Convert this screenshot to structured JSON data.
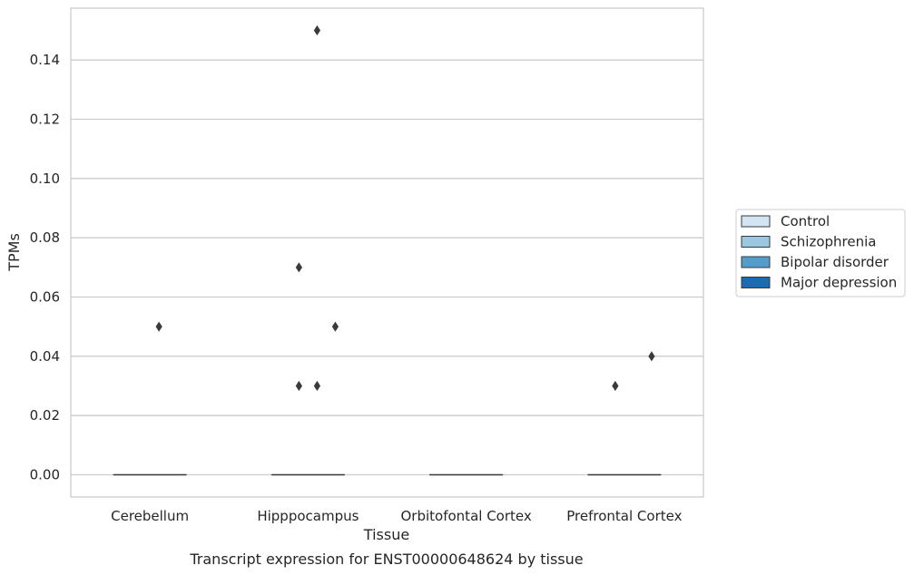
{
  "caption": "Transcript expression for ENST00000648624 by tissue",
  "chart_data": {
    "type": "box",
    "xlabel": "Tissue",
    "ylabel": "TPMs",
    "ylim": [
      -0.0075,
      0.1575
    ],
    "yticks": [
      "0.00",
      "0.02",
      "0.04",
      "0.06",
      "0.08",
      "0.10",
      "0.12",
      "0.14"
    ],
    "grid": "horizontal",
    "legend_position": "right",
    "categories": [
      "Cerebellum",
      "Hipppocampus",
      "Orbitofontal Cortex",
      "Prefrontal Cortex"
    ],
    "series": [
      {
        "name": "Control",
        "color": "#d3e4f3"
      },
      {
        "name": "Schizophrenia",
        "color": "#9ac8e0"
      },
      {
        "name": "Bipolar disorder",
        "color": "#529dcc"
      },
      {
        "name": "Major depression",
        "color": "#1c6aaf"
      }
    ],
    "boxes": [
      {
        "category": "Cerebellum",
        "series": "Control",
        "median": 0.0,
        "q1": 0.0,
        "q3": 0.0,
        "outliers": []
      },
      {
        "category": "Cerebellum",
        "series": "Schizophrenia",
        "median": 0.0,
        "q1": 0.0,
        "q3": 0.0,
        "outliers": []
      },
      {
        "category": "Cerebellum",
        "series": "Bipolar disorder",
        "median": 0.0,
        "q1": 0.0,
        "q3": 0.0,
        "outliers": [
          0.05
        ]
      },
      {
        "category": "Cerebellum",
        "series": "Major depression",
        "median": 0.0,
        "q1": 0.0,
        "q3": 0.0,
        "outliers": []
      },
      {
        "category": "Hipppocampus",
        "series": "Control",
        "median": 0.0,
        "q1": 0.0,
        "q3": 0.0,
        "outliers": []
      },
      {
        "category": "Hipppocampus",
        "series": "Schizophrenia",
        "median": 0.0,
        "q1": 0.0,
        "q3": 0.0,
        "outliers": [
          0.03,
          0.07
        ]
      },
      {
        "category": "Hipppocampus",
        "series": "Bipolar disorder",
        "median": 0.0,
        "q1": 0.0,
        "q3": 0.0,
        "outliers": [
          0.03,
          0.15
        ]
      },
      {
        "category": "Hipppocampus",
        "series": "Major depression",
        "median": 0.0,
        "q1": 0.0,
        "q3": 0.0,
        "outliers": [
          0.05
        ]
      },
      {
        "category": "Orbitofontal Cortex",
        "series": "Control",
        "median": 0.0,
        "q1": 0.0,
        "q3": 0.0,
        "outliers": []
      },
      {
        "category": "Orbitofontal Cortex",
        "series": "Schizophrenia",
        "median": 0.0,
        "q1": 0.0,
        "q3": 0.0,
        "outliers": []
      },
      {
        "category": "Orbitofontal Cortex",
        "series": "Bipolar disorder",
        "median": 0.0,
        "q1": 0.0,
        "q3": 0.0,
        "outliers": []
      },
      {
        "category": "Orbitofontal Cortex",
        "series": "Major depression",
        "median": 0.0,
        "q1": 0.0,
        "q3": 0.0,
        "outliers": []
      },
      {
        "category": "Prefrontal Cortex",
        "series": "Control",
        "median": 0.0,
        "q1": 0.0,
        "q3": 0.0,
        "outliers": []
      },
      {
        "category": "Prefrontal Cortex",
        "series": "Schizophrenia",
        "median": 0.0,
        "q1": 0.0,
        "q3": 0.0,
        "outliers": [
          0.03
        ]
      },
      {
        "category": "Prefrontal Cortex",
        "series": "Bipolar disorder",
        "median": 0.0,
        "q1": 0.0,
        "q3": 0.0,
        "outliers": []
      },
      {
        "category": "Prefrontal Cortex",
        "series": "Major depression",
        "median": 0.0,
        "q1": 0.0,
        "q3": 0.0,
        "outliers": [
          0.04
        ]
      }
    ]
  }
}
